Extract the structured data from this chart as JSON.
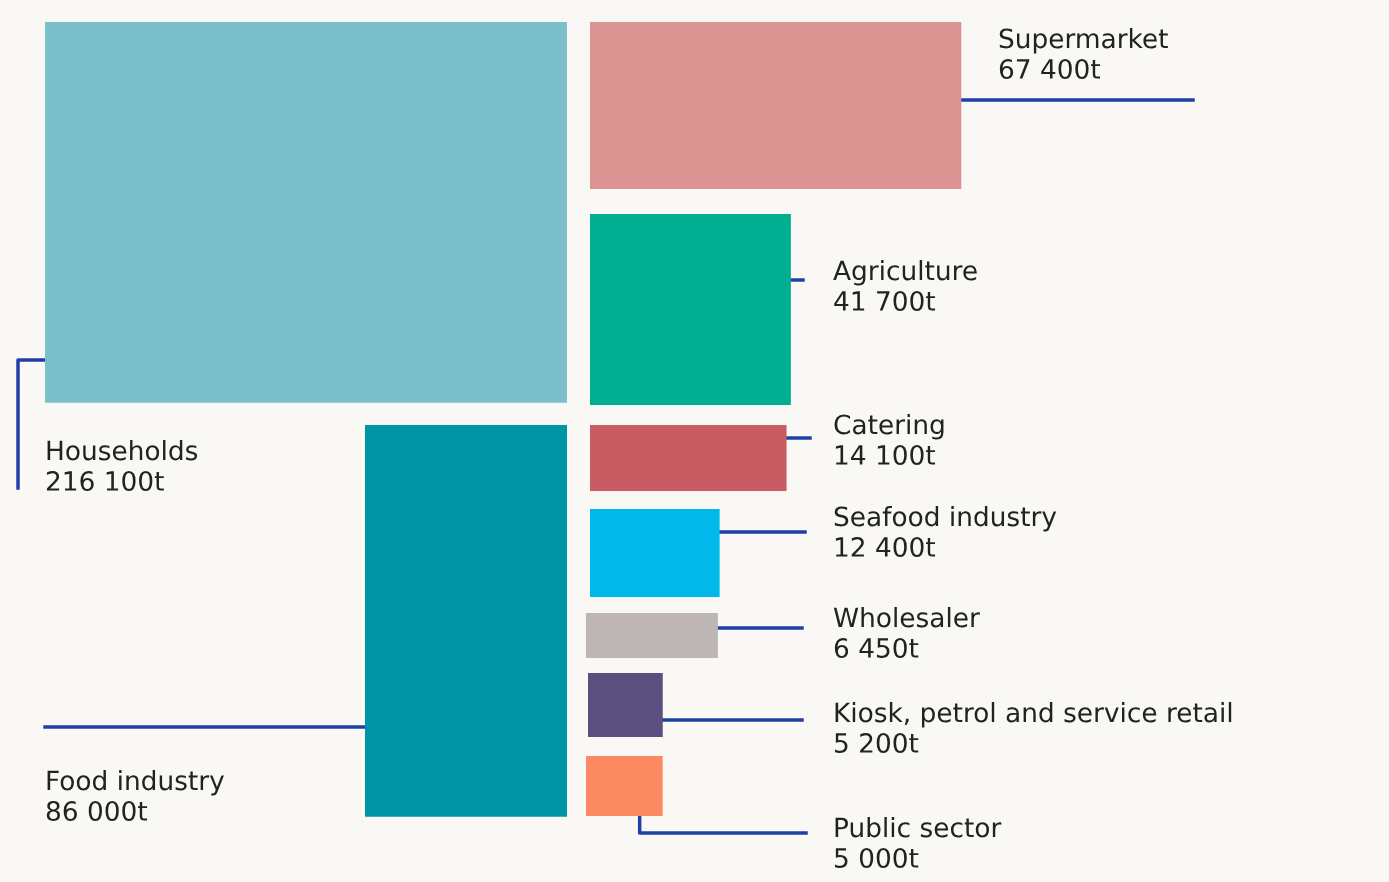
{
  "chart_data": {
    "type": "other",
    "categories": [
      "Households",
      "Food industry",
      "Supermarket",
      "Agriculture",
      "Catering",
      "Seafood industry",
      "Wholesaler",
      "Kiosk, petrol and service retail",
      "Public sector"
    ],
    "values": [
      216100,
      86000,
      67400,
      41700,
      14100,
      12400,
      6450,
      5200,
      5000
    ],
    "value_labels": [
      "216 100t",
      "86 000t",
      "67 400t",
      "41 700t",
      "14 100t",
      "12 400t",
      "6 450t",
      "5 200t",
      "5 000t"
    ],
    "colors": [
      "#7bbfca",
      "#0095a4",
      "#dc9493",
      "#00ae92",
      "#c85c62",
      "#00b8ea",
      "#bdb6b4",
      "#5b4f7f",
      "#fb8a63"
    ]
  }
}
